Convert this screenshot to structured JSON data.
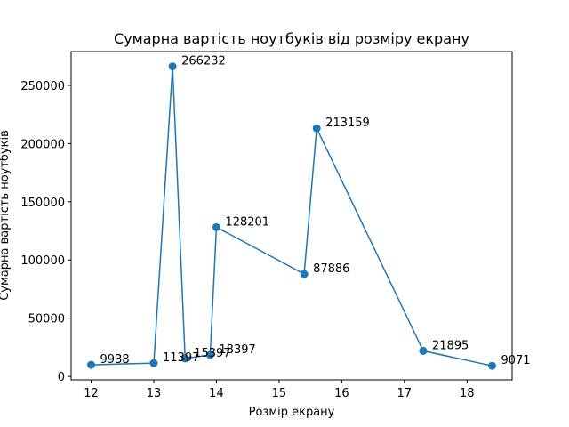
{
  "chart_data": {
    "type": "line",
    "title": "Сумарна вартість ноутбуків від розміру екрану",
    "xlabel": "Розмір екрану",
    "ylabel": "Сумарна вартість ноутбуків",
    "xlim": [
      11.68,
      18.72
    ],
    "ylim": [
      -3000,
      279000
    ],
    "xticks": [
      12,
      13,
      14,
      15,
      16,
      17,
      18
    ],
    "yticks": [
      0,
      50000,
      100000,
      150000,
      200000,
      250000
    ],
    "grid": false,
    "series": [
      {
        "color": "#1f77b4",
        "marker": "circle",
        "x": [
          12.0,
          13.0,
          13.3,
          13.5,
          13.9,
          14.0,
          15.4,
          15.6,
          17.3,
          18.4
        ],
        "values": [
          9938,
          11397,
          266232,
          15397,
          18397,
          128201,
          87886,
          213159,
          21895,
          9071
        ],
        "labels": [
          "9938",
          "11397",
          "266232",
          "15397",
          "18397",
          "128201",
          "87886",
          "213159",
          "21895",
          "9071"
        ]
      }
    ]
  }
}
